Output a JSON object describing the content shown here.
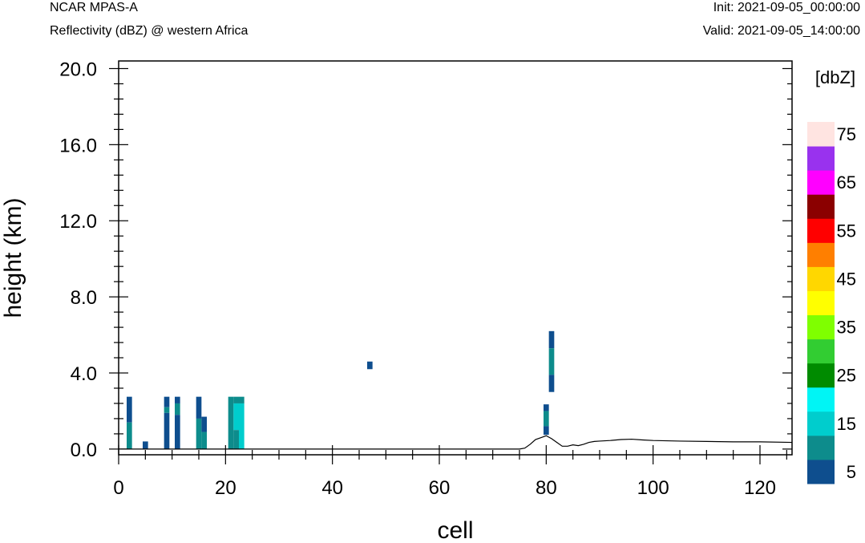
{
  "header": {
    "model": "NCAR MPAS-A",
    "field": "Reflectivity (dBZ) @ western Africa",
    "init": "Init: 2021-09-05_00:00:00",
    "valid": "Valid: 2021-09-05_14:00:00"
  },
  "chart_data": {
    "type": "heatmap",
    "xlabel": "cell",
    "ylabel": "height (km)",
    "xlim": [
      0,
      126
    ],
    "ylim": [
      -0.3,
      20.4
    ],
    "x_ticks": [
      "0",
      "20",
      "40",
      "60",
      "80",
      "100",
      "120"
    ],
    "x_tick_values": [
      0,
      20,
      40,
      60,
      80,
      100,
      120
    ],
    "y_ticks": [
      "0.0",
      "4.0",
      "8.0",
      "12.0",
      "16.0",
      "20.0"
    ],
    "y_tick_values": [
      0,
      4,
      8,
      12,
      16,
      20
    ],
    "colorbar": {
      "units": "[dbZ]",
      "labels": [
        "5",
        "15",
        "25",
        "35",
        "45",
        "55",
        "65",
        "75"
      ],
      "label_values": [
        5,
        15,
        25,
        35,
        45,
        55,
        65,
        75
      ],
      "bins": [
        {
          "min": 0,
          "max": 5,
          "color": "#0e4e8e"
        },
        {
          "min": 5,
          "max": 10,
          "color": "#0d8c8c"
        },
        {
          "min": 10,
          "max": 15,
          "color": "#00cdcd"
        },
        {
          "min": 15,
          "max": 20,
          "color": "#00f5f5"
        },
        {
          "min": 20,
          "max": 25,
          "color": "#008b00"
        },
        {
          "min": 25,
          "max": 30,
          "color": "#32cd32"
        },
        {
          "min": 30,
          "max": 35,
          "color": "#7fff00"
        },
        {
          "min": 35,
          "max": 40,
          "color": "#ffff00"
        },
        {
          "min": 40,
          "max": 45,
          "color": "#ffd700"
        },
        {
          "min": 45,
          "max": 50,
          "color": "#ff7f00"
        },
        {
          "min": 50,
          "max": 55,
          "color": "#ff0000"
        },
        {
          "min": 55,
          "max": 60,
          "color": "#8b0000"
        },
        {
          "min": 60,
          "max": 65,
          "color": "#ff00ff"
        },
        {
          "min": 65,
          "max": 70,
          "color": "#9932ee"
        },
        {
          "min": 70,
          "max": 75,
          "color": "#ffe4e1"
        }
      ]
    },
    "cells": [
      {
        "x0": 1.5,
        "x1": 2.5,
        "y0": 1.4,
        "y1": 2.75,
        "dbz": 3
      },
      {
        "x0": 1.5,
        "x1": 2.5,
        "y0": 0.0,
        "y1": 1.4,
        "dbz": 8
      },
      {
        "x0": 4.5,
        "x1": 5.5,
        "y0": 0.0,
        "y1": 0.4,
        "dbz": 3
      },
      {
        "x0": 8.5,
        "x1": 9.5,
        "y0": 2.2,
        "y1": 2.75,
        "dbz": 3
      },
      {
        "x0": 8.5,
        "x1": 9.5,
        "y0": 1.9,
        "y1": 2.2,
        "dbz": 8
      },
      {
        "x0": 8.5,
        "x1": 9.5,
        "y0": 0.0,
        "y1": 1.9,
        "dbz": 3
      },
      {
        "x0": 10.5,
        "x1": 11.5,
        "y0": 2.4,
        "y1": 2.75,
        "dbz": 3
      },
      {
        "x0": 10.5,
        "x1": 11.5,
        "y0": 1.8,
        "y1": 2.4,
        "dbz": 8
      },
      {
        "x0": 10.5,
        "x1": 11.5,
        "y0": 0.0,
        "y1": 1.8,
        "dbz": 3
      },
      {
        "x0": 14.5,
        "x1": 15.5,
        "y0": 1.6,
        "y1": 2.75,
        "dbz": 3
      },
      {
        "x0": 14.5,
        "x1": 15.5,
        "y0": 0.0,
        "y1": 1.6,
        "dbz": 8
      },
      {
        "x0": 15.5,
        "x1": 16.5,
        "y0": 0.9,
        "y1": 1.7,
        "dbz": 3
      },
      {
        "x0": 15.5,
        "x1": 16.5,
        "y0": 0.0,
        "y1": 0.9,
        "dbz": 8
      },
      {
        "x0": 20.5,
        "x1": 21.5,
        "y0": 0.0,
        "y1": 2.75,
        "dbz": 8
      },
      {
        "x0": 21.5,
        "x1": 22.5,
        "y0": 2.4,
        "y1": 2.75,
        "dbz": 8
      },
      {
        "x0": 21.5,
        "x1": 22.5,
        "y0": 1.0,
        "y1": 2.4,
        "dbz": 12
      },
      {
        "x0": 21.5,
        "x1": 22.5,
        "y0": 0.0,
        "y1": 1.0,
        "dbz": 8
      },
      {
        "x0": 22.5,
        "x1": 23.5,
        "y0": 2.4,
        "y1": 2.75,
        "dbz": 8
      },
      {
        "x0": 22.5,
        "x1": 23.5,
        "y0": 0.0,
        "y1": 2.4,
        "dbz": 12
      },
      {
        "x0": 46.5,
        "x1": 47.5,
        "y0": 4.2,
        "y1": 4.6,
        "dbz": 3
      },
      {
        "x0": 79.5,
        "x1": 80.5,
        "y0": 2.0,
        "y1": 2.35,
        "dbz": 3
      },
      {
        "x0": 79.5,
        "x1": 80.5,
        "y0": 1.2,
        "y1": 2.0,
        "dbz": 8
      },
      {
        "x0": 79.5,
        "x1": 80.5,
        "y0": 0.75,
        "y1": 1.2,
        "dbz": 3
      },
      {
        "x0": 80.5,
        "x1": 81.5,
        "y0": 5.3,
        "y1": 6.2,
        "dbz": 3
      },
      {
        "x0": 80.5,
        "x1": 81.5,
        "y0": 3.9,
        "y1": 5.3,
        "dbz": 8
      },
      {
        "x0": 80.5,
        "x1": 81.5,
        "y0": 3.0,
        "y1": 3.9,
        "dbz": 3
      }
    ],
    "terrain": {
      "x": [
        0,
        10,
        20,
        30,
        40,
        50,
        60,
        70,
        75,
        76,
        77,
        78,
        79,
        80,
        81,
        82,
        83,
        84,
        85,
        86,
        87,
        88,
        89,
        90,
        92,
        94,
        96,
        98,
        100,
        105,
        110,
        115,
        120,
        126
      ],
      "y": [
        0,
        0,
        0,
        0,
        0,
        0,
        0,
        0,
        0,
        0.05,
        0.25,
        0.5,
        0.6,
        0.7,
        0.55,
        0.35,
        0.15,
        0.15,
        0.22,
        0.18,
        0.25,
        0.35,
        0.4,
        0.42,
        0.45,
        0.5,
        0.52,
        0.48,
        0.45,
        0.42,
        0.4,
        0.38,
        0.38,
        0.35
      ]
    }
  }
}
